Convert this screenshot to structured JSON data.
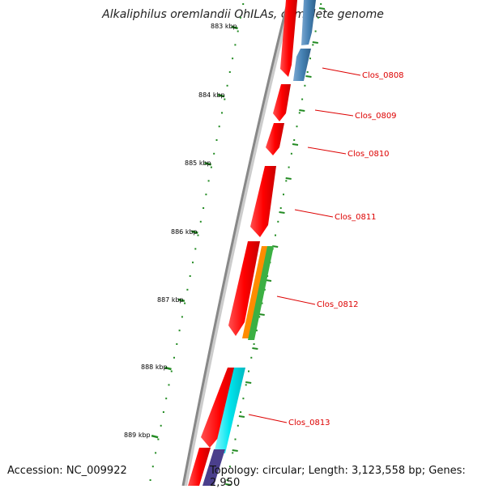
{
  "title": "Alkaliphilus oremlandii OhILAs, complete genome",
  "footer": {
    "accession": "Accession: NC_009922",
    "topology": "Topology: circular; Length: 3,123,558 bp; Genes: 2,950"
  },
  "kbp_labels": [
    "883 kbp",
    "884 kbp",
    "885 kbp",
    "886 kbp",
    "887 kbp",
    "888 kbp",
    "889 kbp"
  ],
  "gene_labels": [
    "Clos_0808",
    "Clos_0809",
    "Clos_0810",
    "Clos_0811",
    "Clos_0812",
    "Clos_0813"
  ],
  "colors": {
    "forward_gene": "#ff0000",
    "reverse_blue": "#4682b4",
    "orange": "#ff8c00",
    "green": "#3cb043",
    "cyan": "#00e5ee",
    "purple": "#4b3f8c",
    "ticks": "#228b22",
    "label": "#dd0000",
    "backbone": "#888888"
  }
}
